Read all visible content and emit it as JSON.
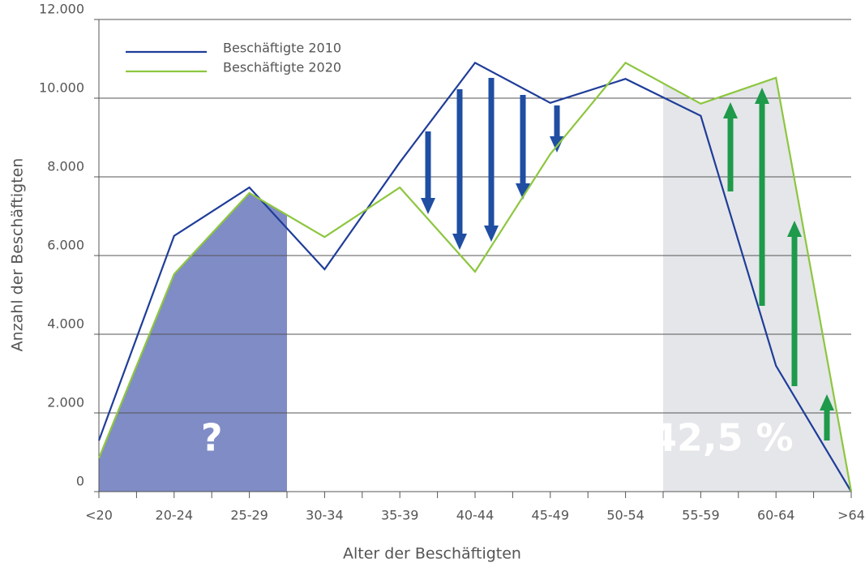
{
  "chart_data": {
    "type": "line",
    "xlabel": "Alter der Beschäftigten",
    "ylabel": "Anzahl der Beschäftigten",
    "categories": [
      "<20",
      "20-24",
      "25-29",
      "30-34",
      "35-39",
      "40-44",
      "45-49",
      "50-54",
      "55-59",
      "60-64",
      ">64"
    ],
    "series": [
      {
        "name": "Beschäftigte 2010",
        "color": "#1f3d99",
        "values": [
          1300,
          6500,
          7730,
          5650,
          8370,
          10900,
          9880,
          10490,
          9550,
          3200,
          0
        ]
      },
      {
        "name": "Beschäftigte 2020",
        "color": "#8dc63f",
        "values": [
          850,
          5530,
          7590,
          6470,
          7730,
          5590,
          8580,
          10900,
          9860,
          10520,
          0
        ]
      }
    ],
    "ylim": [
      0,
      12000
    ],
    "yticks": [
      0,
      {
        "value": 2000,
        "label": "2.000"
      },
      {
        "value": 4000,
        "label": "4.000"
      },
      {
        "value": 6000,
        "label": "6.000"
      },
      {
        "value": 8000,
        "label": "8.000"
      },
      {
        "value": 10000,
        "label": "10.000"
      },
      {
        "value": 12000,
        "label": "12.000"
      }
    ],
    "grid": true,
    "annotations": [
      "?",
      "42,5 %"
    ],
    "region_colors": [
      "#7f8cc6",
      "#e4e6e9"
    ],
    "legend_position": "upper left"
  }
}
